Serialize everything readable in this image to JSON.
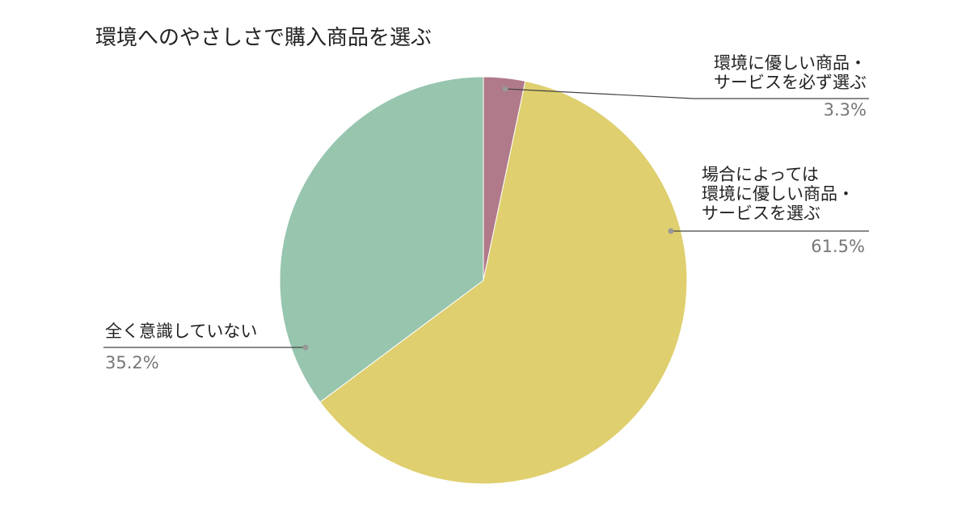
{
  "chart_data": {
    "type": "pie",
    "title": "環境へのやさしさで購入商品を選ぶ",
    "categories": [
      "環境に優しい商品・\nサービスを必ず選ぶ",
      "場合によっては\n環境に優しい商品・\nサービスを選ぶ",
      "全く意識していない"
    ],
    "values": [
      3.3,
      61.5,
      35.2
    ],
    "value_labels": [
      "3.3%",
      "61.5%",
      "35.2%"
    ],
    "colors": [
      "#b07a8a",
      "#dfcf6e",
      "#97c5ae"
    ]
  }
}
